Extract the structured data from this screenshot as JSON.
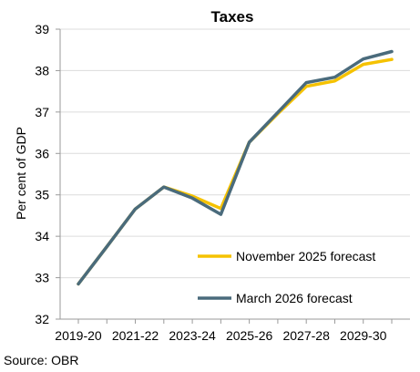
{
  "chart_data": {
    "type": "line",
    "title": "Taxes",
    "ylabel": "Per cent of GDP",
    "xlabel": "",
    "ylim": [
      32,
      39
    ],
    "yticks": [
      32,
      33,
      34,
      35,
      36,
      37,
      38,
      39
    ],
    "x": [
      "2019-20",
      "2020-21",
      "2021-22",
      "2022-23",
      "2023-24",
      "2024-25",
      "2025-26",
      "2026-27",
      "2027-28",
      "2028-29",
      "2029-30",
      "2030-31"
    ],
    "xtick_labels": [
      "2019-20",
      "2021-22",
      "2023-24",
      "2025-26",
      "2027-28",
      "2029-30"
    ],
    "grid": "horizontal",
    "legend_position": "bottom-right",
    "series": [
      {
        "name": "November 2025 forecast",
        "color": "#f5c200",
        "values": [
          32.85,
          33.75,
          34.66,
          35.19,
          34.97,
          34.67,
          36.27,
          36.96,
          37.62,
          37.75,
          38.15,
          38.27
        ]
      },
      {
        "name": "March 2026 forecast",
        "color": "#4a6b7c",
        "values": [
          32.85,
          33.75,
          34.66,
          35.19,
          34.92,
          34.53,
          36.27,
          36.99,
          37.71,
          37.84,
          38.28,
          38.46
        ]
      }
    ]
  },
  "source": "Source: OBR"
}
